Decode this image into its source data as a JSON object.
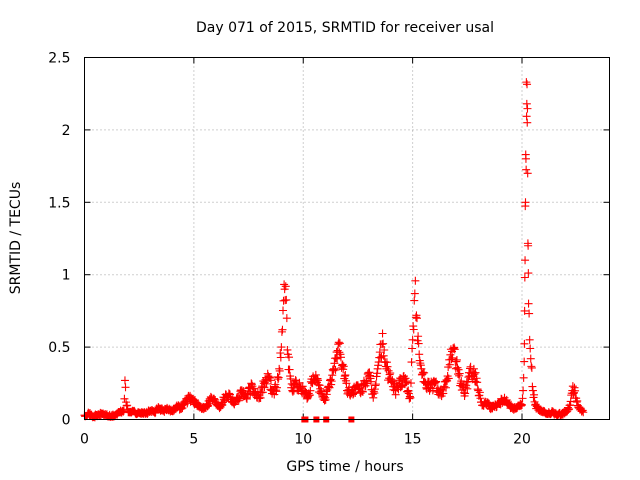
{
  "chart_data": {
    "type": "scatter",
    "title": "Day 071 of 2015, SRMTID for receiver usal",
    "xlabel": "GPS time / hours",
    "ylabel": "SRMTID / TECUs",
    "xlim": [
      0,
      24
    ],
    "ylim": [
      0,
      2.5
    ],
    "xticks": [
      0,
      5,
      10,
      15,
      20
    ],
    "xtick_labels": [
      "0",
      "5",
      "10",
      "15",
      "20"
    ],
    "yticks": [
      0,
      0.5,
      1,
      1.5,
      2,
      2.5
    ],
    "ytick_labels": [
      "0",
      "0.5",
      "1",
      "1.5",
      "2",
      "2.5"
    ],
    "grid": true,
    "marker": "+",
    "color": "#ff0000",
    "series": [
      {
        "name": "SRMTID",
        "x": [
          0.0,
          0.2,
          0.4,
          0.6,
          0.8,
          1.0,
          1.2,
          1.4,
          1.6,
          1.8,
          1.85,
          1.9,
          2.0,
          2.2,
          2.4,
          2.6,
          2.8,
          3.0,
          3.2,
          3.4,
          3.6,
          3.8,
          4.0,
          4.2,
          4.4,
          4.6,
          4.8,
          5.0,
          5.2,
          5.4,
          5.6,
          5.8,
          6.0,
          6.2,
          6.4,
          6.6,
          6.8,
          7.0,
          7.2,
          7.4,
          7.6,
          7.8,
          8.0,
          8.2,
          8.4,
          8.6,
          8.8,
          8.9,
          9.0,
          9.05,
          9.1,
          9.15,
          9.2,
          9.25,
          9.3,
          9.4,
          9.5,
          9.6,
          9.8,
          10.0,
          10.2,
          10.4,
          10.6,
          10.8,
          11.0,
          11.2,
          11.4,
          11.6,
          11.7,
          11.8,
          11.9,
          12.0,
          12.2,
          12.4,
          12.6,
          12.8,
          13.0,
          13.2,
          13.4,
          13.6,
          13.7,
          13.8,
          14.0,
          14.2,
          14.4,
          14.6,
          14.8,
          14.9,
          15.0,
          15.1,
          15.2,
          15.3,
          15.4,
          15.6,
          15.8,
          16.0,
          16.2,
          16.4,
          16.6,
          16.8,
          17.0,
          17.2,
          17.4,
          17.6,
          17.8,
          18.0,
          18.2,
          18.4,
          18.6,
          18.8,
          19.0,
          19.2,
          19.4,
          19.6,
          19.8,
          20.0,
          20.05,
          20.1,
          20.12,
          20.14,
          20.16,
          20.18,
          20.2,
          20.22,
          20.24,
          20.26,
          20.28,
          20.3,
          20.35,
          20.4,
          20.5,
          20.6,
          20.8,
          21.0,
          21.2,
          21.4,
          21.6,
          21.8,
          22.0,
          22.2,
          22.3,
          22.4,
          22.5,
          22.6,
          22.8
        ],
        "y": [
          0.03,
          0.04,
          0.02,
          0.03,
          0.04,
          0.03,
          0.02,
          0.03,
          0.05,
          0.06,
          0.27,
          0.12,
          0.05,
          0.06,
          0.04,
          0.05,
          0.04,
          0.06,
          0.05,
          0.08,
          0.06,
          0.07,
          0.06,
          0.09,
          0.08,
          0.12,
          0.15,
          0.13,
          0.09,
          0.08,
          0.1,
          0.15,
          0.12,
          0.09,
          0.15,
          0.18,
          0.12,
          0.14,
          0.2,
          0.15,
          0.22,
          0.18,
          0.15,
          0.25,
          0.3,
          0.2,
          0.22,
          0.35,
          0.5,
          0.62,
          0.82,
          0.9,
          0.92,
          0.7,
          0.45,
          0.3,
          0.2,
          0.25,
          0.22,
          0.2,
          0.15,
          0.25,
          0.28,
          0.18,
          0.15,
          0.22,
          0.35,
          0.52,
          0.45,
          0.38,
          0.3,
          0.2,
          0.18,
          0.22,
          0.19,
          0.25,
          0.3,
          0.15,
          0.35,
          0.52,
          0.48,
          0.35,
          0.28,
          0.2,
          0.25,
          0.3,
          0.2,
          0.15,
          0.55,
          0.87,
          0.7,
          0.45,
          0.35,
          0.25,
          0.22,
          0.25,
          0.2,
          0.18,
          0.3,
          0.47,
          0.4,
          0.25,
          0.18,
          0.3,
          0.35,
          0.2,
          0.1,
          0.12,
          0.08,
          0.1,
          0.12,
          0.15,
          0.1,
          0.08,
          0.09,
          0.1,
          0.2,
          0.4,
          0.75,
          1.1,
          1.5,
          1.8,
          2.33,
          2.18,
          2.05,
          1.7,
          1.2,
          0.8,
          0.55,
          0.42,
          0.2,
          0.1,
          0.06,
          0.05,
          0.04,
          0.05,
          0.03,
          0.04,
          0.05,
          0.1,
          0.2,
          0.22,
          0.12,
          0.08,
          0.05
        ],
        "zero_dropouts": [
          10.05,
          10.1,
          10.6,
          11.05,
          12.2
        ]
      }
    ]
  }
}
